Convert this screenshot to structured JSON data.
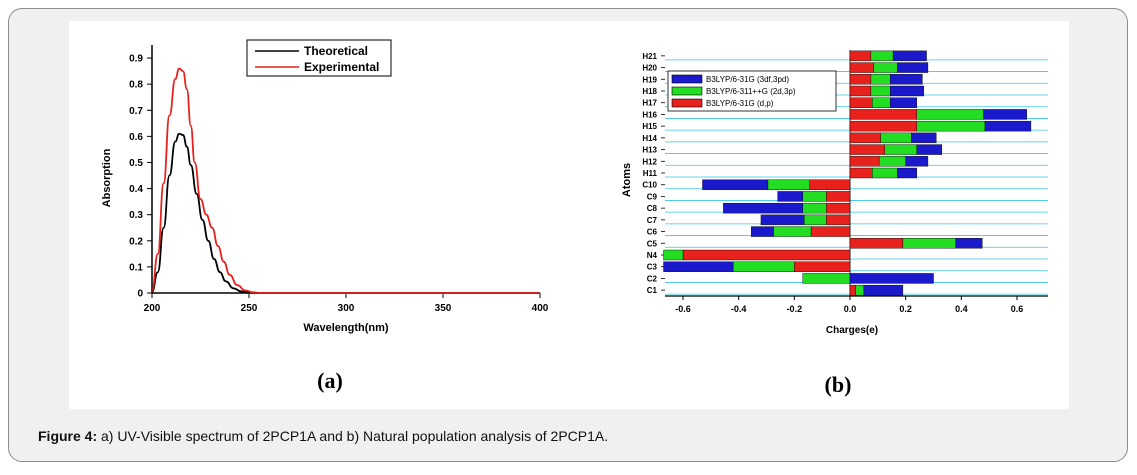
{
  "figure": {
    "caption_label": "Figure 4:",
    "caption_text": "a) UV-Visible spectrum of 2PCP1A and b) Natural population analysis of 2PCP1A.",
    "panel_a_label": "(a)",
    "panel_b_label": "(b)"
  },
  "chart_data": [
    {
      "type": "line",
      "title": "",
      "xlabel": "Wavelength(nm)",
      "ylabel": "Absorption",
      "xlim": [
        200,
        400
      ],
      "ylim": [
        0,
        0.95
      ],
      "xticks": [
        200,
        250,
        300,
        350,
        400
      ],
      "yticks": [
        0,
        0.1,
        0.2,
        0.3,
        0.4,
        0.5,
        0.6,
        0.7,
        0.8,
        0.9
      ],
      "legend_position": "top-right",
      "series": [
        {
          "name": "Theoretical",
          "color": "#000000",
          "x": [
            200,
            203,
            206,
            209,
            212,
            214,
            216,
            218,
            220,
            223,
            226,
            229,
            232,
            235,
            238,
            242,
            246,
            250,
            255,
            260,
            400
          ],
          "y": [
            0.005,
            0.08,
            0.25,
            0.45,
            0.58,
            0.61,
            0.605,
            0.56,
            0.49,
            0.38,
            0.28,
            0.2,
            0.13,
            0.08,
            0.045,
            0.018,
            0.006,
            0.002,
            0,
            0,
            0
          ]
        },
        {
          "name": "Experimental",
          "color": "#e8211c",
          "x": [
            200,
            203,
            206,
            209,
            212,
            214,
            216,
            218,
            220,
            222,
            225,
            228,
            231,
            234,
            237,
            240,
            244,
            248,
            252,
            256,
            262,
            400
          ],
          "y": [
            0.01,
            0.15,
            0.42,
            0.68,
            0.82,
            0.86,
            0.85,
            0.78,
            0.64,
            0.5,
            0.36,
            0.3,
            0.25,
            0.18,
            0.12,
            0.07,
            0.03,
            0.01,
            0.003,
            0,
            0,
            0
          ]
        }
      ]
    },
    {
      "type": "bar",
      "orientation": "horizontal",
      "stacked": true,
      "title": "",
      "xlabel": "Charges(e)",
      "ylabel": "Atoms",
      "xlim": [
        -0.68,
        0.7
      ],
      "xticks": [
        -0.6,
        -0.4,
        -0.2,
        0.0,
        0.2,
        0.4,
        0.6
      ],
      "xtick_labels": [
        "-0.6",
        "-0.4",
        "-0.2",
        "0.0",
        "0.2",
        "0.4",
        "0.6"
      ],
      "legend_position": "top-left",
      "categories": [
        "C1",
        "C2",
        "C3",
        "N4",
        "C5",
        "C6",
        "C7",
        "C8",
        "C9",
        "C10",
        "H11",
        "H12",
        "H13",
        "H14",
        "H15",
        "H16",
        "H17",
        "H18",
        "H19",
        "H20",
        "H21"
      ],
      "series": [
        {
          "name": "B3LYP/6-31G (d,p)",
          "color": "#e8211c",
          "values": [
            0.02,
            0.0,
            -0.2,
            -0.6,
            0.19,
            -0.14,
            -0.085,
            -0.085,
            -0.085,
            -0.145,
            0.08,
            0.105,
            0.125,
            0.11,
            0.24,
            0.24,
            0.08,
            0.075,
            0.075,
            0.085,
            0.075
          ]
        },
        {
          "name": "B3LYP/6-311++G (2d,3p)",
          "color": "#22dd22",
          "values": [
            0.03,
            -0.17,
            -0.22,
            -0.07,
            0.19,
            -0.135,
            -0.08,
            -0.085,
            -0.085,
            -0.15,
            0.09,
            0.095,
            0.115,
            0.11,
            0.245,
            0.24,
            0.065,
            0.07,
            0.07,
            0.085,
            0.08
          ]
        },
        {
          "name": "B3LYP/6-31G (3df,3pd)",
          "color": "#1a1acc",
          "values": [
            0.14,
            0.3,
            -0.25,
            0.0,
            0.095,
            -0.08,
            -0.155,
            -0.285,
            -0.09,
            -0.235,
            0.07,
            0.08,
            0.09,
            0.09,
            0.165,
            0.155,
            0.095,
            0.12,
            0.115,
            0.11,
            0.12
          ]
        }
      ]
    }
  ]
}
